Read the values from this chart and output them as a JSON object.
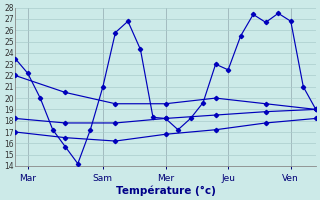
{
  "xlabel": "Température (°c)",
  "background_color": "#cceae8",
  "grid_color": "#aacccc",
  "line_color": "#0000bb",
  "xlim": [
    0,
    24
  ],
  "ylim": [
    14,
    28
  ],
  "ytick_min": 14,
  "ytick_max": 28,
  "day_labels": [
    "Mar",
    "Sam",
    "Mer",
    "Jeu",
    "Ven"
  ],
  "day_positions": [
    1,
    7,
    12,
    17,
    22
  ],
  "vline_positions": [
    1,
    7,
    12,
    17,
    22
  ],
  "line1_x": [
    0,
    1,
    2,
    3,
    4,
    5,
    6,
    7,
    8,
    9,
    10,
    11,
    12,
    13,
    14,
    15,
    16,
    17,
    18,
    19,
    20,
    21,
    22,
    23,
    24
  ],
  "line1_y": [
    23.5,
    22.2,
    20.0,
    17.2,
    15.7,
    14.2,
    17.2,
    21.0,
    25.8,
    26.8,
    24.3,
    18.3,
    18.2,
    17.2,
    18.2,
    19.6,
    23.0,
    22.5,
    25.5,
    27.4,
    26.7,
    27.5,
    26.8,
    21.0,
    19.0
  ],
  "line2_x": [
    0,
    4,
    8,
    12,
    16,
    20,
    24
  ],
  "line2_y": [
    22.0,
    20.5,
    19.5,
    19.5,
    20.0,
    19.5,
    19.0
  ],
  "line3_x": [
    0,
    4,
    8,
    12,
    16,
    20,
    24
  ],
  "line3_y": [
    18.2,
    17.8,
    17.8,
    18.2,
    18.5,
    18.8,
    19.0
  ],
  "line4_x": [
    0,
    4,
    8,
    12,
    16,
    20,
    24
  ],
  "line4_y": [
    17.0,
    16.5,
    16.2,
    16.8,
    17.2,
    17.8,
    18.2
  ]
}
